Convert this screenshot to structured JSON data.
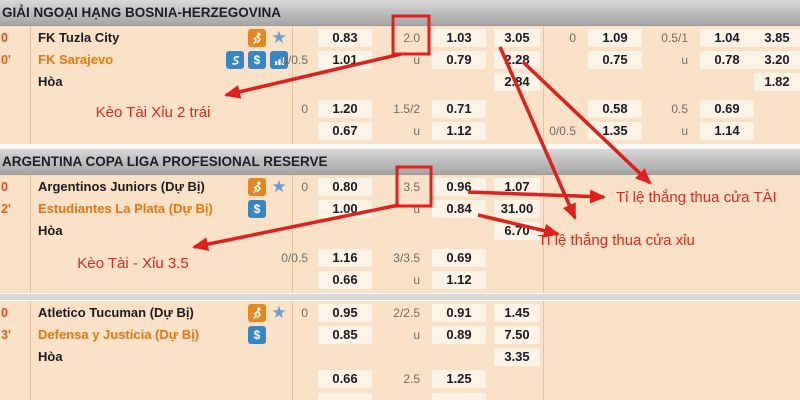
{
  "colors": {
    "accent_red": "#e0211b",
    "header_bg": "#b5b5b5",
    "row_bg": "#fbe1c6",
    "cell_bg": "#fdf3e6",
    "home_team": "#1b1b22",
    "away_team": "#e8770e",
    "icon_orange": "#e8851c",
    "icon_blue": "#3486c7",
    "star_blue": "#6a9bd8"
  },
  "annotations": {
    "note1": "Kèo Tài Xỉu 2 trái",
    "note2": "Kèo Tài - Xỉu 3.5",
    "note3": "Tỉ lệ thắng thua cửa TÀI",
    "note4": "Tỉ lệ thắng thua cửa xỉu"
  },
  "sections": [
    {
      "league": "GIẢI NGOẠI HẠNG BOSNIA-HERZEGOVINA"
    },
    {
      "league": "ARGENTINA COPA LIGA PROFESIONAL RESERVE"
    }
  ],
  "matches": [
    {
      "time": [
        "0",
        "0'"
      ],
      "teams": [
        "FK Tuzla City",
        "FK Sarajevo",
        "Hòa"
      ],
      "icons": {
        "row1": [
          "player-icon",
          "star-icon"
        ],
        "row2": [
          "stream-icon",
          "dollar-icon",
          "stats-icon"
        ]
      },
      "block1": {
        "rows": [
          {
            "g1": {
              "hdp": "",
              "o1": "0.83",
              "line": "2.0",
              "o2": "1.03",
              "x12": "3.05"
            },
            "g2": {
              "hdp": "0",
              "o1": "1.09",
              "line": "0.5/1",
              "o2": "1.04",
              "x12": "3.85"
            }
          },
          {
            "g1": {
              "hdp": "0/0.5",
              "o1": "1.01",
              "line": "u",
              "o2": "0.79",
              "x12": "2.28"
            },
            "g2": {
              "hdp": "",
              "o1": "0.75",
              "line": "u",
              "o2": "0.78",
              "x12": "3.20"
            }
          },
          {
            "g1": {
              "hdp": "",
              "o1": "",
              "line": "",
              "o2": "",
              "x12": "2.84"
            },
            "g2": {
              "hdp": "",
              "o1": "",
              "line": "",
              "o2": "",
              "x12": "1.82"
            }
          }
        ]
      },
      "block2": {
        "rows": [
          {
            "g1": {
              "hdp": "0",
              "o1": "1.20",
              "line": "1.5/2",
              "o2": "0.71",
              "x12": ""
            },
            "g2": {
              "hdp": "",
              "o1": "0.58",
              "line": "0.5",
              "o2": "0.69",
              "x12": ""
            }
          },
          {
            "g1": {
              "hdp": "",
              "o1": "0.67",
              "line": "u",
              "o2": "1.12",
              "x12": ""
            },
            "g2": {
              "hdp": "0/0.5",
              "o1": "1.35",
              "line": "u",
              "o2": "1.14",
              "x12": ""
            }
          }
        ]
      }
    },
    {
      "time": [
        "0",
        "2'"
      ],
      "teams": [
        "Argentinos Juniors (Dự Bị)",
        "Estudiantes La Plata (Dự Bị)",
        "Hòa"
      ],
      "icons": {
        "row1": [
          "player-icon",
          "star-icon"
        ],
        "row2": [
          "dollar-icon"
        ]
      },
      "block1": {
        "rows": [
          {
            "g1": {
              "hdp": "0",
              "o1": "0.80",
              "line": "3.5",
              "o2": "0.96",
              "x12": "1.07"
            }
          },
          {
            "g1": {
              "hdp": "",
              "o1": "1.00",
              "line": "u",
              "o2": "0.84",
              "x12": "31.00"
            }
          },
          {
            "g1": {
              "hdp": "",
              "o1": "",
              "line": "",
              "o2": "",
              "x12": "6.70"
            }
          }
        ]
      },
      "block2": {
        "rows": [
          {
            "g1": {
              "hdp": "0/0.5",
              "o1": "1.16",
              "line": "3/3.5",
              "o2": "0.69",
              "x12": ""
            }
          },
          {
            "g1": {
              "hdp": "",
              "o1": "0.66",
              "line": "u",
              "o2": "1.12",
              "x12": ""
            }
          }
        ]
      }
    },
    {
      "time": [
        "0",
        "3'"
      ],
      "teams": [
        "Atletico Tucuman (Dự Bị)",
        "Defensa y Justicia (Dự Bị)",
        "Hòa"
      ],
      "icons": {
        "row1": [
          "player-icon",
          "star-icon"
        ],
        "row2": [
          "dollar-icon"
        ]
      },
      "block1": {
        "rows": [
          {
            "g1": {
              "hdp": "0",
              "o1": "0.95",
              "line": "2/2.5",
              "o2": "0.91",
              "x12": "1.45"
            }
          },
          {
            "g1": {
              "hdp": "",
              "o1": "0.85",
              "line": "u",
              "o2": "0.89",
              "x12": "7.50"
            }
          },
          {
            "g1": {
              "hdp": "",
              "o1": "",
              "line": "",
              "o2": "",
              "x12": "3.35"
            }
          }
        ]
      },
      "block2": {
        "rows": [
          {
            "g1": {
              "hdp": "",
              "o1": "0.66",
              "line": "2.5",
              "o2": "1.25",
              "x12": ""
            }
          },
          {
            "g1": {
              "hdp": " ",
              "o1": " ",
              "line": "",
              "o2": " ",
              "x12": ""
            }
          }
        ]
      }
    }
  ]
}
